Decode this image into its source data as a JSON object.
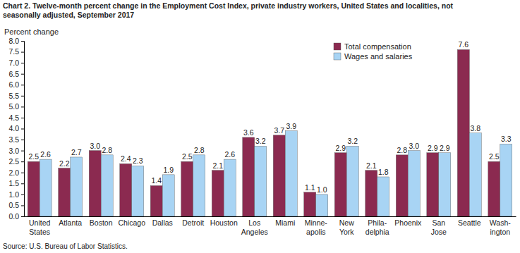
{
  "chart_data": {
    "type": "bar",
    "title": "Chart 2. Twelve-month percent change in the Employment Cost Index, private industry workers, United States and localities, not\nseasonally adjusted, September 2017",
    "y_label": "Percent change",
    "annotations": [
      "Source: U.S. Bureau of Labor Statistics."
    ],
    "categories": [
      "United\nStates",
      "Atlanta",
      "Boston",
      "Chicago",
      "Dallas",
      "Detroit",
      "Houston",
      "Los\nAngeles",
      "Miami",
      "Minne-\napolis",
      "New\nYork",
      "Phila-\ndelphia",
      "Phoenix",
      "San\nJose",
      "Seattle",
      "Wash-\nington"
    ],
    "series": [
      {
        "name": "Total compensation",
        "color": "#8b2a50",
        "values": [
          2.5,
          2.2,
          3.0,
          2.4,
          1.4,
          2.5,
          2.1,
          3.6,
          3.7,
          1.1,
          2.9,
          2.1,
          2.8,
          2.9,
          7.6,
          2.5
        ],
        "value_labels": [
          "2.5",
          "2.2",
          "3.0",
          "2.4",
          "1.4",
          "2.5",
          "2.1",
          "3.6",
          "3.7",
          "1.1",
          "2.9",
          "2.1",
          "2.8",
          "2.9",
          "7.6",
          "2.5"
        ]
      },
      {
        "name": "Wages and salaries",
        "color": "#a8d4f4",
        "values": [
          2.6,
          2.7,
          2.8,
          2.3,
          1.9,
          2.8,
          2.6,
          3.2,
          3.9,
          1.0,
          3.2,
          1.8,
          3.0,
          2.9,
          3.8,
          3.3
        ],
        "value_labels": [
          "2.6",
          "2.7",
          "2.8",
          "2.3",
          "1.9",
          "2.8",
          "2.6",
          "3.2",
          "3.9",
          "1.0",
          "3.2",
          "1.8",
          "3.0",
          "2.9",
          "3.8",
          "3.3"
        ]
      }
    ],
    "ylim": [
      0,
      8
    ],
    "yticks": [
      {
        "value": 0,
        "label": "0.0"
      },
      0.5,
      {
        "value": 1,
        "label": "1.0"
      },
      1.5,
      {
        "value": 2,
        "label": "2.0"
      },
      2.5,
      {
        "value": 3,
        "label": "3.0"
      },
      3.5,
      {
        "value": 4,
        "label": "4.0"
      },
      4.5,
      {
        "value": 5,
        "label": "5.0"
      },
      5.5,
      {
        "value": 6,
        "label": "6.0"
      },
      6.5,
      {
        "value": 7,
        "label": "7.0"
      },
      7.5,
      {
        "value": 8,
        "label": "8.0"
      }
    ],
    "grid": false,
    "legend": "top-right",
    "data_labels": true
  }
}
